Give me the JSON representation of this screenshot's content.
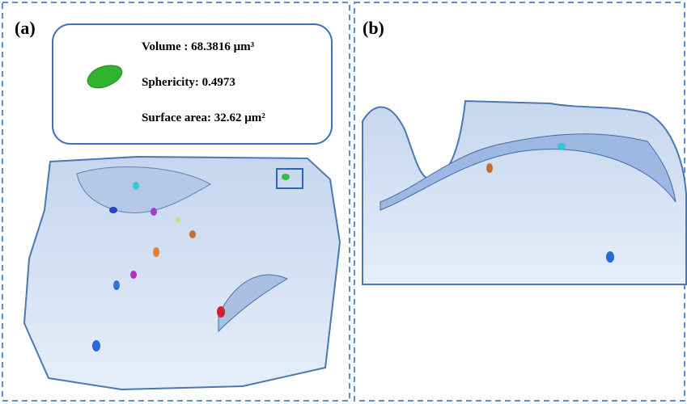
{
  "panels": [
    {
      "label": "(a)",
      "info": {
        "lines": [
          "Volume : 68.3816 μm³",
          "Sphericity: 0.4973",
          "Surface area: 32.62 μm²"
        ]
      }
    },
    {
      "label": "(b)"
    }
  ]
}
